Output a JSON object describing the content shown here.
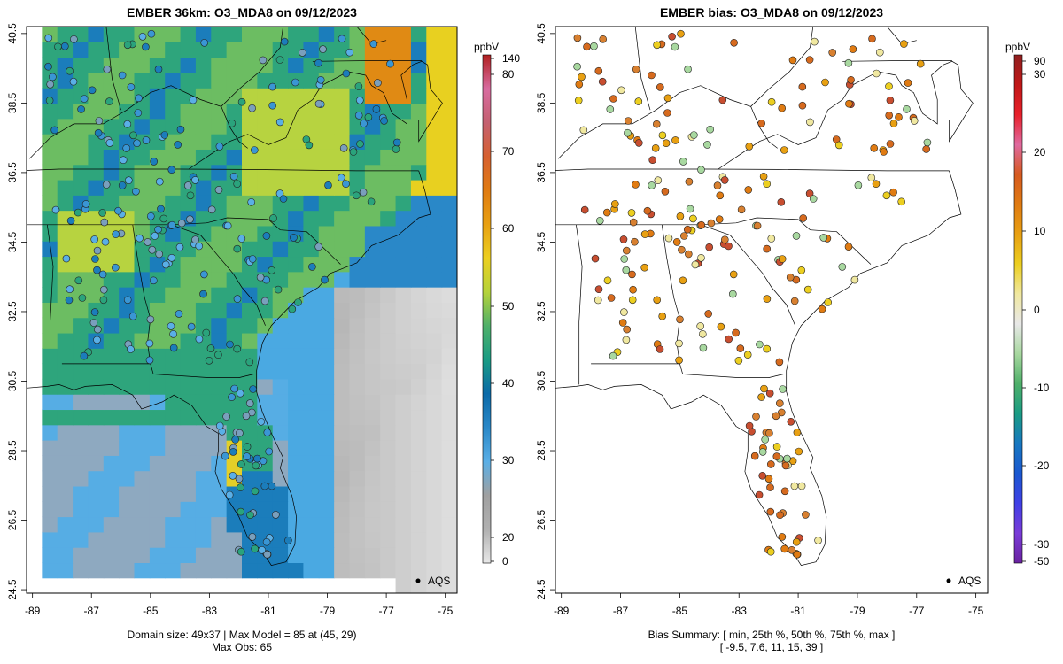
{
  "left_panel": {
    "title": "EMBER 36km: O3_MDA8 on 09/12/2023",
    "caption_line1": "Domain size: 49x37 | Max Model = 85 at (45, 29)",
    "caption_line2": "Max Obs: 65",
    "legend_label": "AQS",
    "colorbar_unit": "ppbV",
    "colorbar_ticks": [
      "140",
      "80",
      "70",
      "60",
      "50",
      "40",
      "30",
      "20",
      "0"
    ],
    "colorbar_colors": [
      "#e8e8e8",
      "#b0b0b0",
      "#a0a0a0",
      "#5aafe6",
      "#2a88c8",
      "#0b6aa8",
      "#1a9c84",
      "#4fb06a",
      "#b5d33a",
      "#eccf20",
      "#e8a012",
      "#e07b12",
      "#d66030",
      "#c46070",
      "#d86ca0",
      "#b02020"
    ]
  },
  "right_panel": {
    "title": "EMBER bias: O3_MDA8 on 09/12/2023",
    "caption_line1": "Bias Summary: [ min, 25th %, 50th %, 75th %, max ]",
    "caption_line2": "[ -9.5,   7.6,   11,   15,   39 ]",
    "legend_label": "AQS",
    "colorbar_unit": "ppbV",
    "colorbar_ticks": [
      "90",
      "30",
      "20",
      "10",
      "0",
      "-10",
      "-20",
      "-30",
      "-50"
    ],
    "colorbar_colors": [
      "#6a22a0",
      "#7a3cd8",
      "#4040e6",
      "#1a58d0",
      "#1878c0",
      "#1a9c84",
      "#4fb06a",
      "#a8d8a0",
      "#e8e8e8",
      "#f0e8a0",
      "#eccf20",
      "#e8a012",
      "#e07b12",
      "#d65a20",
      "#e06aa0",
      "#e8202a",
      "#c01818",
      "#902020"
    ]
  },
  "axes": {
    "x_ticks": [
      "-89",
      "-87",
      "-85",
      "-83",
      "-81",
      "-79",
      "-77",
      "-75"
    ],
    "y_ticks": [
      "24.5",
      "26.5",
      "28.5",
      "30.5",
      "32.5",
      "34.5",
      "36.5",
      "38.5",
      "40.5"
    ],
    "lon_range": [
      -89.2,
      -74.6
    ],
    "lat_range": [
      24.4,
      40.7
    ]
  }
}
